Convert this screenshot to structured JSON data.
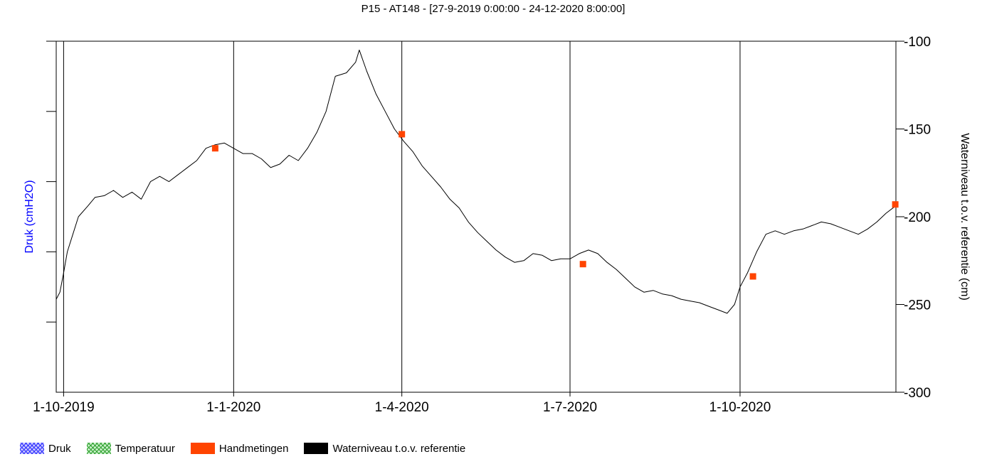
{
  "chart_data": {
    "type": "line",
    "title": "P15 - AT148 -  [27-9-2019 0:00:00 - 24-12-2020 8:00:00]",
    "ylabel_left": "Druk (cmH2O)",
    "ylabel_right": "Waterniveau t.o.v. referentie (cm)",
    "x_range": [
      "2019-09-27",
      "2020-12-24"
    ],
    "x_ticks": [
      {
        "date": "2019-10-01",
        "label": "1-10-2019"
      },
      {
        "date": "2020-01-01",
        "label": "1-1-2020"
      },
      {
        "date": "2020-04-01",
        "label": "1-4-2020"
      },
      {
        "date": "2020-07-01",
        "label": "1-7-2020"
      },
      {
        "date": "2020-10-01",
        "label": "1-10-2020"
      }
    ],
    "y_right_ticks": [
      -100,
      -150,
      -200,
      -250,
      -300
    ],
    "ylim_right": [
      -300,
      -100
    ],
    "left_axis_ticks_count": 5,
    "grid_vertical_at_x_ticks": true,
    "legend_placement": "bottom",
    "colors": {
      "druk": "#3030ff",
      "temperatuur": "#30a030",
      "handmetingen": "#ff4400",
      "waterniveau": "#000000",
      "druk_label": "#0000ff"
    },
    "legend": [
      {
        "label": "Druk",
        "swatch": "hatch-blue"
      },
      {
        "label": "Temperatuur",
        "swatch": "hatch-green"
      },
      {
        "label": "Handmetingen",
        "swatch": "solid-orange"
      },
      {
        "label": "Waterniveau t.o.v. referentie",
        "swatch": "solid-black"
      }
    ],
    "series": [
      {
        "name": "Waterniveau t.o.v. referentie",
        "style": "line",
        "points": [
          [
            "2019-09-27",
            -247
          ],
          [
            "2019-09-29",
            -243
          ],
          [
            "2019-10-01",
            -232
          ],
          [
            "2019-10-03",
            -220
          ],
          [
            "2019-10-06",
            -210
          ],
          [
            "2019-10-09",
            -200
          ],
          [
            "2019-10-14",
            -194
          ],
          [
            "2019-10-18",
            -189
          ],
          [
            "2019-10-23",
            -188
          ],
          [
            "2019-10-28",
            -185
          ],
          [
            "2019-11-02",
            -189
          ],
          [
            "2019-11-07",
            -186
          ],
          [
            "2019-11-12",
            -190
          ],
          [
            "2019-11-17",
            -180
          ],
          [
            "2019-11-22",
            -177
          ],
          [
            "2019-11-27",
            -180
          ],
          [
            "2019-12-02",
            -176
          ],
          [
            "2019-12-07",
            -172
          ],
          [
            "2019-12-12",
            -168
          ],
          [
            "2019-12-17",
            -161
          ],
          [
            "2019-12-22",
            -159
          ],
          [
            "2019-12-27",
            -158
          ],
          [
            "2020-01-01",
            -161
          ],
          [
            "2020-01-06",
            -164
          ],
          [
            "2020-01-11",
            -164
          ],
          [
            "2020-01-16",
            -167
          ],
          [
            "2020-01-21",
            -172
          ],
          [
            "2020-01-26",
            -170
          ],
          [
            "2020-01-31",
            -165
          ],
          [
            "2020-02-05",
            -168
          ],
          [
            "2020-02-10",
            -161
          ],
          [
            "2020-02-15",
            -152
          ],
          [
            "2020-02-20",
            -140
          ],
          [
            "2020-02-25",
            -120
          ],
          [
            "2020-03-02",
            -118
          ],
          [
            "2020-03-07",
            -112
          ],
          [
            "2020-03-09",
            -105
          ],
          [
            "2020-03-13",
            -117
          ],
          [
            "2020-03-18",
            -130
          ],
          [
            "2020-03-23",
            -140
          ],
          [
            "2020-03-28",
            -150
          ],
          [
            "2020-04-02",
            -157
          ],
          [
            "2020-04-07",
            -163
          ],
          [
            "2020-04-12",
            -171
          ],
          [
            "2020-04-17",
            -177
          ],
          [
            "2020-04-22",
            -183
          ],
          [
            "2020-04-27",
            -190
          ],
          [
            "2020-05-02",
            -195
          ],
          [
            "2020-05-07",
            -203
          ],
          [
            "2020-05-12",
            -209
          ],
          [
            "2020-05-17",
            -214
          ],
          [
            "2020-05-22",
            -219
          ],
          [
            "2020-05-27",
            -223
          ],
          [
            "2020-06-01",
            -226
          ],
          [
            "2020-06-06",
            -225
          ],
          [
            "2020-06-11",
            -221
          ],
          [
            "2020-06-16",
            -222
          ],
          [
            "2020-06-21",
            -225
          ],
          [
            "2020-06-26",
            -224
          ],
          [
            "2020-07-01",
            -224
          ],
          [
            "2020-07-06",
            -221
          ],
          [
            "2020-07-11",
            -219
          ],
          [
            "2020-07-16",
            -221
          ],
          [
            "2020-07-21",
            -226
          ],
          [
            "2020-07-26",
            -230
          ],
          [
            "2020-07-31",
            -235
          ],
          [
            "2020-08-05",
            -240
          ],
          [
            "2020-08-10",
            -243
          ],
          [
            "2020-08-15",
            -242
          ],
          [
            "2020-08-20",
            -244
          ],
          [
            "2020-08-25",
            -245
          ],
          [
            "2020-08-30",
            -247
          ],
          [
            "2020-09-04",
            -248
          ],
          [
            "2020-09-09",
            -249
          ],
          [
            "2020-09-14",
            -251
          ],
          [
            "2020-09-19",
            -253
          ],
          [
            "2020-09-24",
            -255
          ],
          [
            "2020-09-28",
            -250
          ],
          [
            "2020-10-01",
            -240
          ],
          [
            "2020-10-05",
            -232
          ],
          [
            "2020-10-10",
            -220
          ],
          [
            "2020-10-15",
            -210
          ],
          [
            "2020-10-20",
            -208
          ],
          [
            "2020-10-25",
            -210
          ],
          [
            "2020-10-30",
            -208
          ],
          [
            "2020-11-04",
            -207
          ],
          [
            "2020-11-09",
            -205
          ],
          [
            "2020-11-14",
            -203
          ],
          [
            "2020-11-19",
            -204
          ],
          [
            "2020-11-24",
            -206
          ],
          [
            "2020-11-29",
            -208
          ],
          [
            "2020-12-04",
            -210
          ],
          [
            "2020-12-09",
            -207
          ],
          [
            "2020-12-14",
            -203
          ],
          [
            "2020-12-19",
            -198
          ],
          [
            "2020-12-24",
            -194
          ]
        ]
      },
      {
        "name": "Handmetingen",
        "style": "markers",
        "points": [
          [
            "2019-12-22",
            -161
          ],
          [
            "2020-04-01",
            -153
          ],
          [
            "2020-07-08",
            -227
          ],
          [
            "2020-10-08",
            -234
          ],
          [
            "2020-12-24",
            -193
          ]
        ]
      }
    ]
  }
}
